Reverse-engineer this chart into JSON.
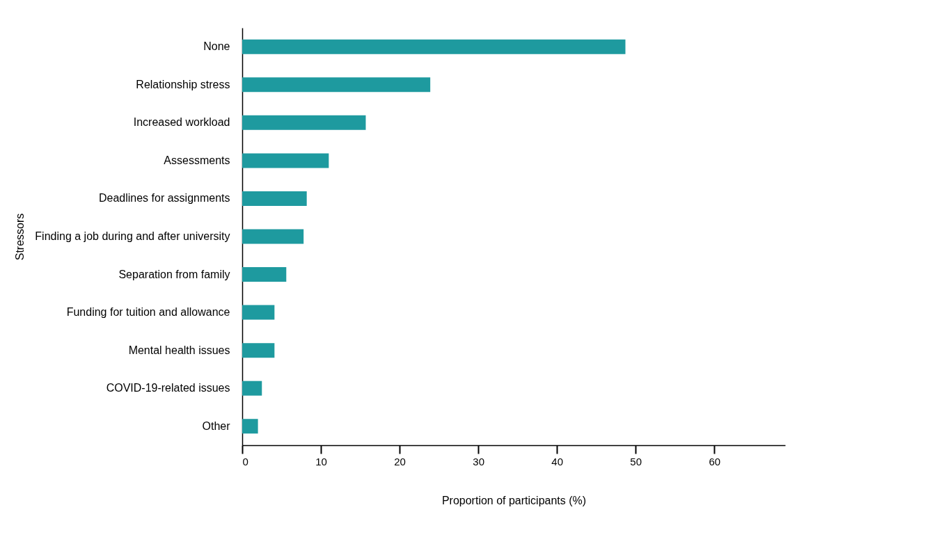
{
  "chart_data": {
    "type": "bar",
    "orientation": "horizontal",
    "xlabel": "Proportion of participants (%)",
    "ylabel": "Stressors",
    "categories": [
      "None",
      "Relationship stress",
      "Increased workload",
      "Assessments",
      "Deadlines for assignments",
      "Finding a job during and after university",
      "Separation from family",
      "Funding for tuition and allowance",
      "Mental health issues",
      "COVID-19-related issues",
      "Other"
    ],
    "values": [
      48.7,
      23.9,
      15.7,
      11.0,
      8.2,
      7.8,
      5.6,
      4.1,
      4.1,
      2.5,
      2.0
    ],
    "color": "#1e9a9f",
    "xlim": [
      0,
      69
    ],
    "xticks": [
      0,
      10,
      20,
      30,
      40,
      50,
      60
    ],
    "grid": false
  }
}
